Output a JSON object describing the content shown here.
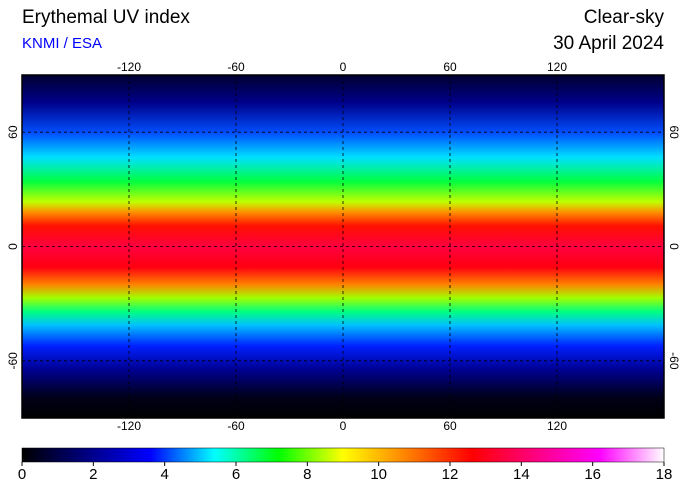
{
  "header": {
    "title": "Erythemal UV index",
    "credit": "KNMI / ESA",
    "condition": "Clear-sky",
    "date": "30 April 2024"
  },
  "map": {
    "xlim": [
      -180,
      180
    ],
    "ylim": [
      -90,
      90
    ],
    "xticks": [
      -120,
      -60,
      0,
      60,
      120
    ],
    "yticks": [
      60,
      0,
      -60
    ]
  },
  "colorbar": {
    "lim": [
      0,
      18
    ],
    "ticks": [
      0,
      2,
      4,
      6,
      8,
      10,
      12,
      14,
      16,
      18
    ],
    "colors": [
      "#000000",
      "#000080",
      "#0000ff",
      "#00ffff",
      "#00ff00",
      "#ffff00",
      "#ff8000",
      "#ff0000",
      "#ff0080",
      "#ff00ff",
      "#ffffff"
    ]
  }
}
